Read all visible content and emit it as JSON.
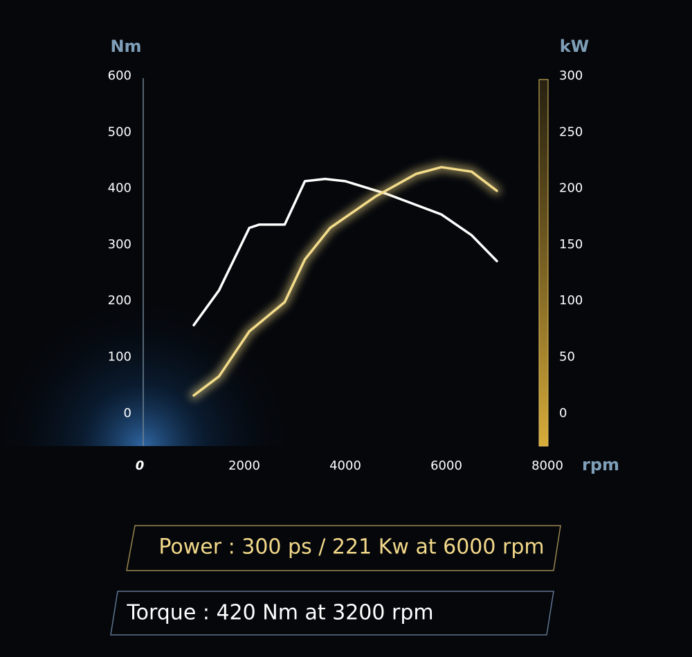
{
  "chart_data": {
    "type": "line",
    "y_label": "Nm",
    "y2_label": "kW",
    "x_label": "rpm",
    "xlim": [
      0,
      8000
    ],
    "xticks": [
      0,
      2000,
      4000,
      6000,
      8000
    ],
    "ylim": [
      -58,
      600
    ],
    "yticks": [
      0,
      100,
      200,
      300,
      400,
      500,
      600
    ],
    "y2lim": [
      -29,
      300
    ],
    "y2ticks": [
      0,
      50,
      100,
      150,
      200,
      250,
      300
    ],
    "series": [
      {
        "name": "Torque",
        "color": "#ffffff",
        "x": [
          1000,
          1500,
          2100,
          2300,
          2800,
          3200,
          3600,
          4000,
          4800,
          5900,
          6500,
          7000
        ],
        "values": [
          157,
          219,
          330,
          336,
          336,
          413,
          417,
          413,
          391,
          354,
          317,
          271
        ]
      },
      {
        "name": "Power",
        "color": "#f3dc8a",
        "axis": "y2",
        "x": [
          1000,
          1500,
          2100,
          2800,
          3200,
          3700,
          4600,
          5400,
          5900,
          6500,
          7000
        ],
        "values": [
          16,
          33,
          73,
          99,
          137,
          165,
          193,
          213,
          219,
          215,
          198
        ]
      }
    ],
    "annotations": [
      "Power : 300 ps / 221 Kw at 6000 rpm",
      "Torque : 420 Nm at 3200 rpm"
    ]
  }
}
